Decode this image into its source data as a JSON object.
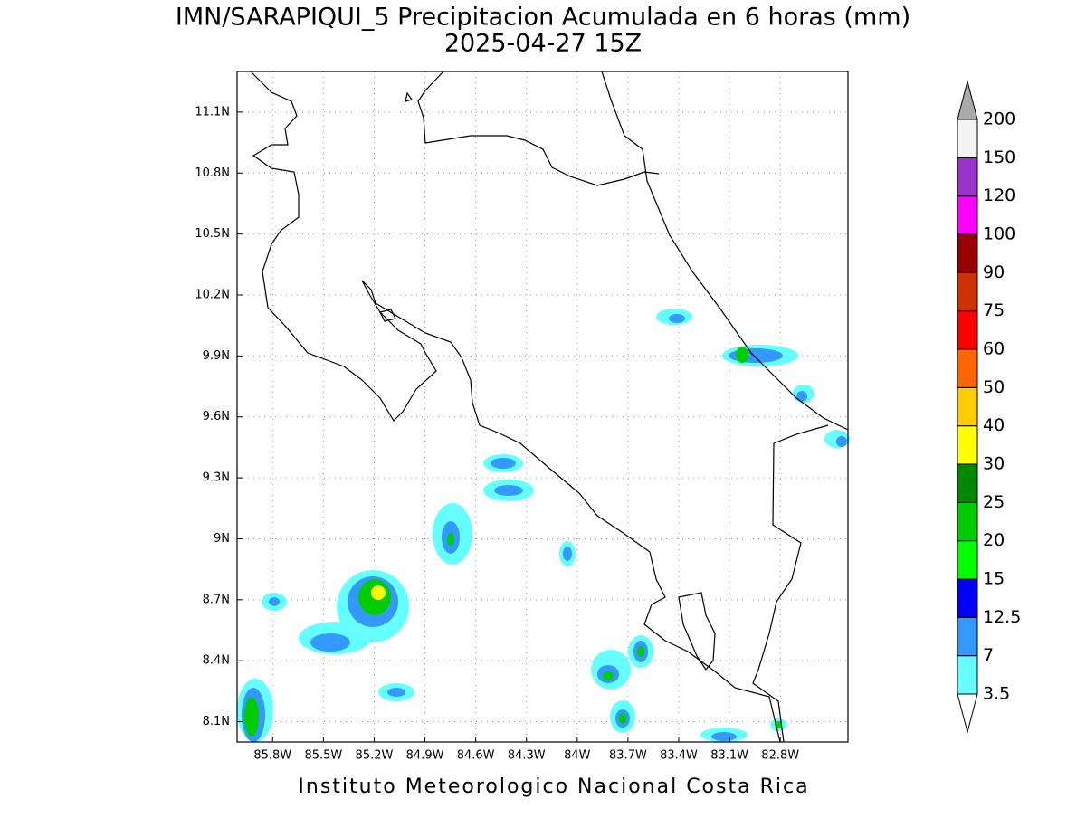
{
  "map": {
    "title": "IMN/SARAPIQUI_5 Precipitacion Acumulada en 6 horas (mm)",
    "subtitle": "2025-04-27 15Z",
    "footer": "Instituto Meteorologico Nacional Costa Rica",
    "xlim": [
      -86.01,
      -82.4
    ],
    "ylim": [
      8.0,
      11.3
    ],
    "xticks": [
      {
        "value": -85.8,
        "label": "85.8W"
      },
      {
        "value": -85.5,
        "label": "85.5W"
      },
      {
        "value": -85.2,
        "label": "85.2W"
      },
      {
        "value": -84.9,
        "label": "84.9W"
      },
      {
        "value": -84.6,
        "label": "84.6W"
      },
      {
        "value": -84.3,
        "label": "84.3W"
      },
      {
        "value": -84.0,
        "label": "84W"
      },
      {
        "value": -83.7,
        "label": "83.7W"
      },
      {
        "value": -83.4,
        "label": "83.4W"
      },
      {
        "value": -83.1,
        "label": "83.1W"
      },
      {
        "value": -82.8,
        "label": "82.8W"
      }
    ],
    "yticks": [
      {
        "value": 11.1,
        "label": "11.1N"
      },
      {
        "value": 10.8,
        "label": "10.8N"
      },
      {
        "value": 10.5,
        "label": "10.5N"
      },
      {
        "value": 10.2,
        "label": "10.2N"
      },
      {
        "value": 9.9,
        "label": "9.9N"
      },
      {
        "value": 9.6,
        "label": "9.6N"
      },
      {
        "value": 9.3,
        "label": "9.3N"
      },
      {
        "value": 9.0,
        "label": "9N"
      },
      {
        "value": 8.7,
        "label": "8.7N"
      },
      {
        "value": 8.4,
        "label": "8.4N"
      },
      {
        "value": 8.1,
        "label": "8.1N"
      }
    ],
    "grid": true,
    "colorbar": {
      "levels": [
        3.5,
        7,
        12.5,
        15,
        20,
        25,
        30,
        40,
        50,
        60,
        75,
        90,
        100,
        120,
        150,
        200
      ],
      "colors": [
        "#66ffff",
        "#3399ff",
        "#0000ff",
        "#00ff00",
        "#00cc00",
        "#008800",
        "#ffff00",
        "#ffcc00",
        "#ff6600",
        "#ff0000",
        "#cc3300",
        "#990000",
        "#ff00ff",
        "#9933cc",
        "#f4f4f4"
      ],
      "under_color": "#ffffff",
      "over_color": "#aaaaaa"
    }
  }
}
